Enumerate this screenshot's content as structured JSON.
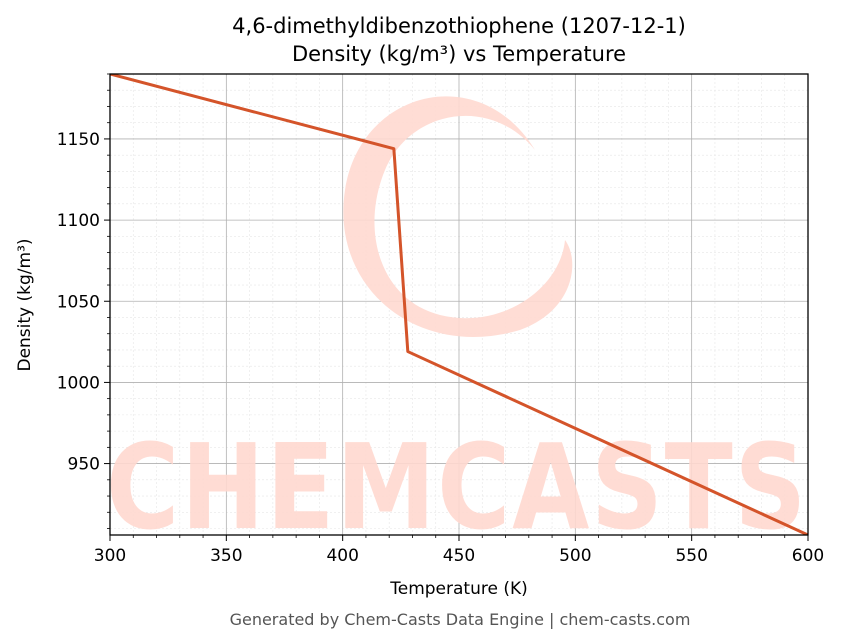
{
  "chart_data": {
    "type": "line",
    "title": "4,6-dimethyldibenzothiophene (1207-12-1)",
    "subtitle": "Density (kg/m³) vs Temperature",
    "xlabel": "Temperature (K)",
    "ylabel": "Density (kg/m³)",
    "xlim": [
      300,
      600
    ],
    "ylim": [
      906,
      1190
    ],
    "xticks": [
      300,
      350,
      400,
      450,
      500,
      550,
      600
    ],
    "yticks": [
      950,
      1000,
      1050,
      1100,
      1150
    ],
    "grid": true,
    "series": [
      {
        "color": "#d4542a",
        "x": [
          300,
          422,
          428,
          600
        ],
        "y": [
          1190,
          1144,
          1019,
          906
        ]
      }
    ]
  },
  "watermark": {
    "text": "CHEMCASTS",
    "color": "#ffd9d0"
  },
  "footer": "Generated by Chem-Casts Data Engine | chem-casts.com"
}
